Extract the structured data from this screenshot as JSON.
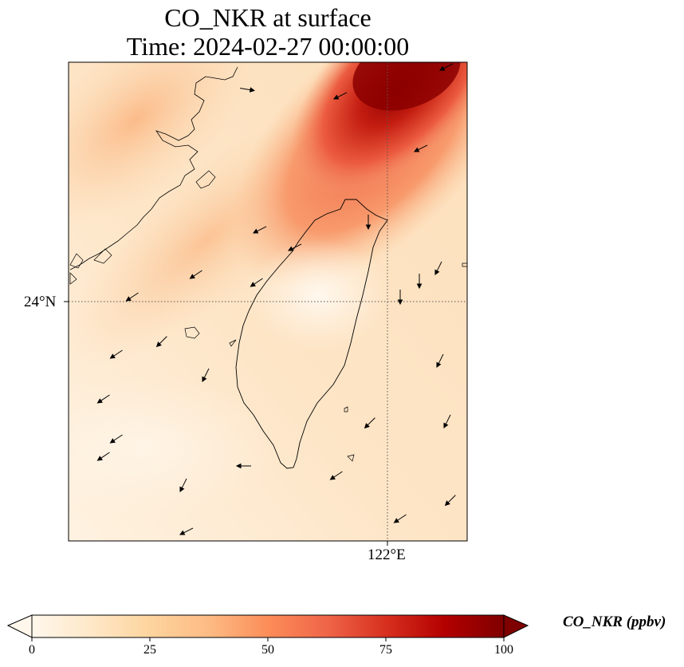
{
  "title": {
    "line1": "CO_NKR at surface",
    "line2": "Time: 2024-02-27 00:00:00"
  },
  "map": {
    "type": "gridded concentration field with wind vectors",
    "variable": "CO_NKR",
    "level": "surface",
    "colormap": "OrRd",
    "region": "Taiwan and adjacent coast of southeast China",
    "gridlines": [
      {
        "axis": "lat",
        "label": "24°N",
        "style": "dotted"
      },
      {
        "axis": "lon",
        "label": "122°E",
        "style": "dotted"
      }
    ],
    "wind_vectors": true,
    "coastlines": true
  },
  "axes": {
    "lat_tick": "24°N",
    "lon_tick": "122°E"
  },
  "colorbar": {
    "label": "CO_NKR (ppbv)",
    "ticks": [
      "0",
      "25",
      "50",
      "75",
      "100"
    ],
    "min": 0,
    "max": 100,
    "extend": "both",
    "colors": [
      "#fff7ec",
      "#fee8c8",
      "#fdd49e",
      "#fdbb84",
      "#fc8d59",
      "#ef6548",
      "#d7301f",
      "#b30000",
      "#7f0000"
    ]
  }
}
